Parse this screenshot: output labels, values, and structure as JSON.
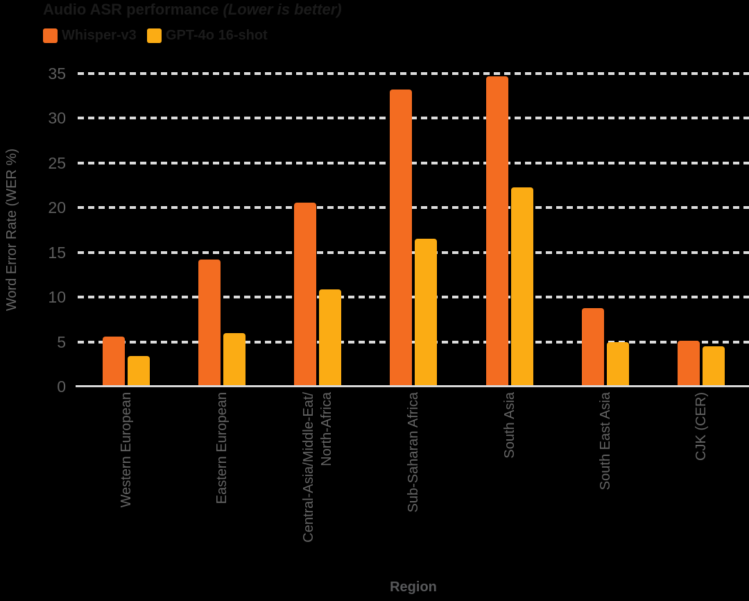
{
  "title": {
    "main": "Audio ASR performance",
    "note": "(Lower is better)"
  },
  "colors": {
    "background": "#000000",
    "whisper_orange": "#F36C21",
    "gpt4o_yellow": "#FBAC14",
    "gridline": "#DCDCDC",
    "axis_text": "#646464",
    "title_text": "#1B1B1B"
  },
  "chart_data": {
    "type": "bar",
    "title": "Audio ASR performance (Lower is better)",
    "xlabel": "Region",
    "ylabel": "Word Error Rate (WER %)",
    "ylim": [
      0,
      35
    ],
    "yticks": [
      0,
      5,
      10,
      15,
      20,
      25,
      30,
      35
    ],
    "grid": "horizontal-dashed",
    "legend_position": "top-left",
    "categories": [
      "Western European",
      "Eastern European",
      "Central-Asia/Middle-Eat/\nNorth-Africa",
      "Sub-Saharan Africa",
      "South Asia",
      "South East Asia",
      "CJK (CER)"
    ],
    "series": [
      {
        "name": "Whisper-v3",
        "color": "#F36C21",
        "values": [
          5.6,
          14.2,
          20.6,
          33.2,
          34.7,
          8.8,
          5.1
        ]
      },
      {
        "name": "GPT-4o 16-shot",
        "color": "#FBAC14",
        "values": [
          3.4,
          6.0,
          10.9,
          16.5,
          22.3,
          5.0,
          4.5
        ]
      }
    ]
  }
}
